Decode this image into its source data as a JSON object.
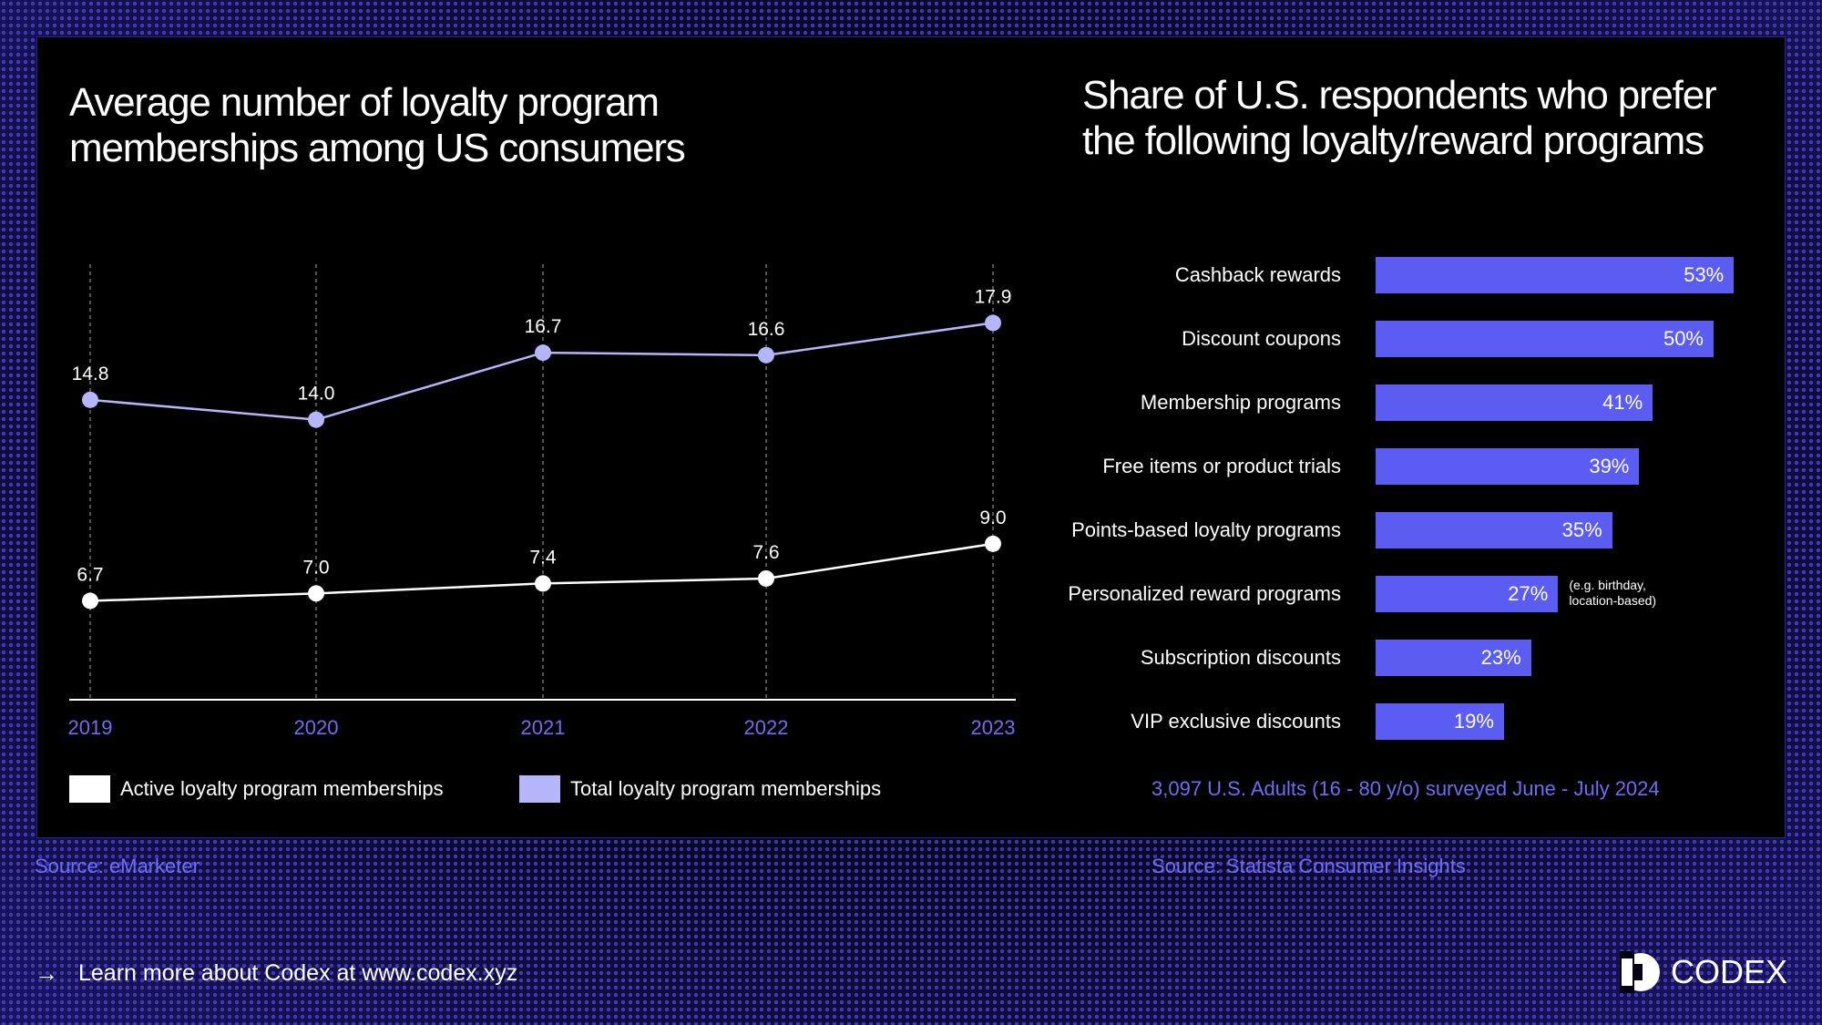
{
  "left_chart": {
    "title": "Average number of loyalty program\nmemberships among US consumers",
    "source": "Source: eMarketer"
  },
  "right_chart": {
    "title": "Share of U.S. respondents who prefer\nthe following loyalty/reward programs",
    "survey_note": "3,097 U.S. Adults (16 - 80 y/o) surveyed June - July 2024",
    "source": "Source: Statista Consumer Insights"
  },
  "chart_data": [
    {
      "type": "line",
      "title": "Average number of loyalty program memberships among US consumers",
      "categories": [
        "2019",
        "2020",
        "2021",
        "2022",
        "2023"
      ],
      "ylim": [
        0,
        22
      ],
      "series": [
        {
          "name": "Active loyalty program memberships",
          "color": "#ffffff",
          "values": [
            6.7,
            7.0,
            7.4,
            7.6,
            9.0
          ],
          "labels": [
            "6.7",
            "7.0",
            "7.4",
            "7.6",
            "9.0"
          ]
        },
        {
          "name": "Total loyalty program memberships",
          "color": "#b4b5fb",
          "values": [
            14.8,
            14.0,
            16.7,
            16.6,
            17.9
          ],
          "labels": [
            "14.8",
            "14.0",
            "16.7",
            "16.6",
            "17.9"
          ]
        }
      ],
      "legend_position": "bottom"
    },
    {
      "type": "bar",
      "orientation": "horizontal",
      "title": "Share of U.S. respondents who prefer the following loyalty/reward programs",
      "categories": [
        "Cashback rewards",
        "Discount coupons",
        "Membership programs",
        "Free items or product trials",
        "Points-based loyalty programs",
        "Personalized reward programs",
        "Subscription discounts",
        "VIP exclusive discounts"
      ],
      "values": [
        53,
        50,
        41,
        39,
        35,
        27,
        23,
        19
      ],
      "value_labels": [
        "53%",
        "50%",
        "41%",
        "39%",
        "35%",
        "27%",
        "23%",
        "19%"
      ],
      "annotations": [
        {
          "category": "Personalized reward programs",
          "text": "(e.g. birthday,\nlocation-based)"
        }
      ],
      "bar_color": "#5a5cf2"
    }
  ],
  "footer": {
    "link_text": "Learn more about Codex at www.codex.xyz",
    "arrow_icon": "arrow-right-icon",
    "brand_name": "CODEX"
  }
}
